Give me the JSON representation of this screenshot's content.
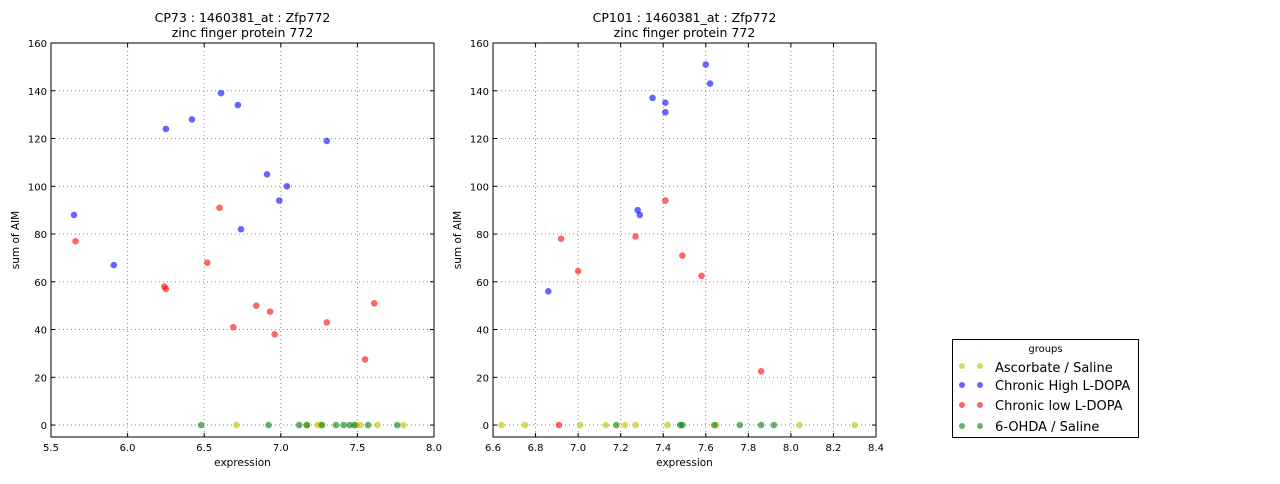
{
  "chart_data": [
    {
      "type": "scatter",
      "title": "CP73 : 1460381_at : Zfp772",
      "subtitle": "zinc finger protein 772",
      "xlabel": "expression",
      "ylabel": "sum of AIM",
      "xlim": [
        5.5,
        8.0
      ],
      "ylim": [
        -5,
        160
      ],
      "xticks": [
        "5.5",
        "6.0",
        "6.5",
        "7.0",
        "7.5",
        "8.0"
      ],
      "yticks": [
        "0",
        "20",
        "40",
        "60",
        "80",
        "100",
        "120",
        "140",
        "160"
      ],
      "grid": true,
      "series": [
        {
          "name": "Ascorbate / Saline",
          "x": [
            6.71,
            7.17,
            7.24,
            7.26,
            7.49,
            7.52,
            7.63,
            7.8
          ],
          "y": [
            0,
            0,
            0,
            0,
            0,
            0,
            0,
            0
          ]
        },
        {
          "name": "Chronic High L-DOPA",
          "x": [
            5.65,
            5.91,
            6.25,
            6.42,
            6.61,
            6.72,
            7.3,
            6.91,
            7.04,
            6.99,
            6.74
          ],
          "y": [
            88,
            67,
            124,
            128,
            139,
            134,
            119,
            105,
            100,
            94,
            82
          ]
        },
        {
          "name": "Chronic low L-DOPA",
          "x": [
            5.66,
            6.6,
            6.52,
            6.24,
            6.25,
            6.69,
            6.84,
            6.93,
            6.96,
            7.3,
            7.61,
            7.55
          ],
          "y": [
            77,
            91,
            68,
            58,
            57,
            41,
            50,
            47.5,
            38,
            43,
            51,
            27.5
          ]
        },
        {
          "name": "6-OHDA / Saline",
          "x": [
            6.48,
            6.92,
            7.12,
            7.17,
            7.27,
            7.36,
            7.41,
            7.45,
            7.48,
            7.57,
            7.76
          ],
          "y": [
            0,
            0,
            0,
            0,
            0,
            0,
            0,
            0,
            0,
            0,
            0
          ]
        }
      ]
    },
    {
      "type": "scatter",
      "title": "CP101 : 1460381_at : Zfp772",
      "subtitle": "zinc finger protein 772",
      "xlabel": "expression",
      "ylabel": "sum of AIM",
      "xlim": [
        6.6,
        8.4
      ],
      "ylim": [
        -5,
        160
      ],
      "xticks": [
        "6.6",
        "6.8",
        "7.0",
        "7.2",
        "7.4",
        "7.6",
        "7.8",
        "8.0",
        "8.2",
        "8.4"
      ],
      "yticks": [
        "0",
        "20",
        "40",
        "60",
        "80",
        "100",
        "120",
        "140",
        "160"
      ],
      "grid": true,
      "series": [
        {
          "name": "Ascorbate / Saline",
          "x": [
            6.64,
            6.75,
            7.01,
            7.13,
            7.22,
            7.27,
            7.42,
            7.65,
            8.04,
            8.3
          ],
          "y": [
            0,
            0,
            0,
            0,
            0,
            0,
            0,
            0,
            0,
            0
          ]
        },
        {
          "name": "Chronic High L-DOPA",
          "x": [
            7.6,
            7.62,
            7.35,
            7.41,
            7.41,
            7.28,
            7.29,
            6.86
          ],
          "y": [
            151,
            143,
            137,
            135,
            131,
            90,
            88,
            56
          ]
        },
        {
          "name": "Chronic low L-DOPA",
          "x": [
            6.91,
            7.41,
            6.92,
            7.27,
            7.0,
            7.49,
            7.58,
            7.86
          ],
          "y": [
            0,
            94,
            78,
            79,
            64.5,
            71,
            62.5,
            22.5
          ]
        },
        {
          "name": "6-OHDA / Saline",
          "x": [
            7.18,
            7.48,
            7.49,
            7.64,
            7.76,
            7.86,
            7.92
          ],
          "y": [
            0,
            0,
            0,
            0,
            0,
            0,
            0
          ]
        }
      ]
    }
  ],
  "legend": {
    "title": "groups",
    "placement": "lower-right outside",
    "items": [
      "Ascorbate / Saline",
      "Chronic High L-DOPA",
      "Chronic low L-DOPA",
      "6-OHDA / Saline"
    ]
  },
  "colors": {
    "Ascorbate / Saline": "#bfbf00",
    "Chronic High L-DOPA": "#0000ff",
    "Chronic low L-DOPA": "#ff0000",
    "6-OHDA / Saline": "#008000"
  }
}
